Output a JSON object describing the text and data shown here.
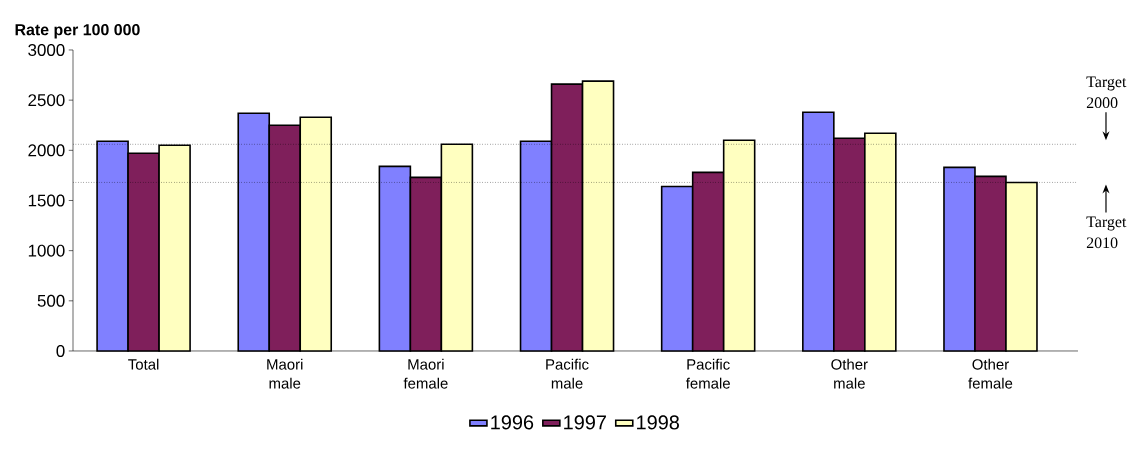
{
  "chart_data": {
    "type": "bar",
    "ylabel": "Rate per 100 000",
    "categories": [
      "Total",
      "Maori male",
      "Maori female",
      "Pacific male",
      "Pacific female",
      "Other male",
      "Other female"
    ],
    "series": [
      {
        "name": "1996",
        "color": "#8080ff",
        "values": [
          2090,
          2370,
          1840,
          2090,
          1640,
          2380,
          1830
        ]
      },
      {
        "name": "1997",
        "color": "#7f1f5b",
        "values": [
          1970,
          2250,
          1730,
          2660,
          1780,
          2120,
          1740
        ]
      },
      {
        "name": "1998",
        "color": "#ffffc0",
        "values": [
          2050,
          2330,
          2060,
          2690,
          2100,
          2170,
          1680
        ]
      }
    ],
    "ylim": [
      0,
      3000
    ],
    "yticks": [
      0,
      500,
      1000,
      1500,
      2000,
      2500,
      3000
    ],
    "ref_lines": [
      {
        "axis": "y",
        "value": 2060,
        "label": "Target 2000",
        "line_style": "dotted",
        "color": "#000000"
      },
      {
        "axis": "y",
        "value": 1680,
        "label": "Target 2010",
        "line_style": "dotted",
        "color": "#000000"
      }
    ],
    "legend": "bottom"
  }
}
